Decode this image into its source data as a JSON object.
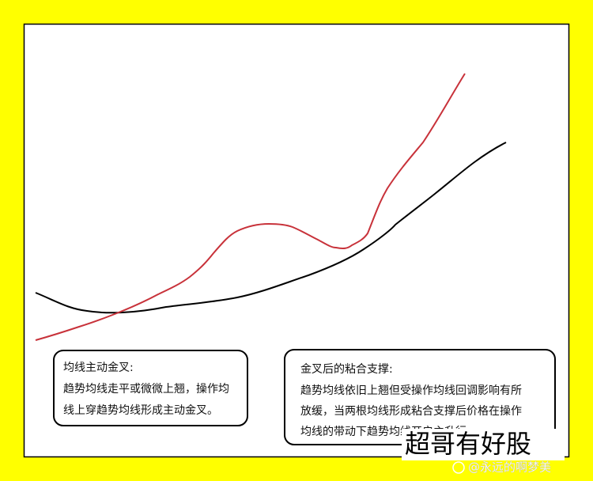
{
  "left_box": {
    "title": "均线主动金叉:",
    "lines": [
      "趋势均线走平或微微上翘，操作均",
      "线上穿趋势均线形成主动金叉。"
    ]
  },
  "right_box": {
    "title": "金叉后的粘合支撑:",
    "lines": [
      "趋势均线依旧上翘但受操作均线回调影响有所",
      "放缓，当两根均线形成粘合支撑后价格在操作",
      "均线的带动下趋势均线开启主升行"
    ]
  },
  "watermark": {
    "title": "超哥有好股",
    "handle": "@永远的啊梦美"
  }
}
